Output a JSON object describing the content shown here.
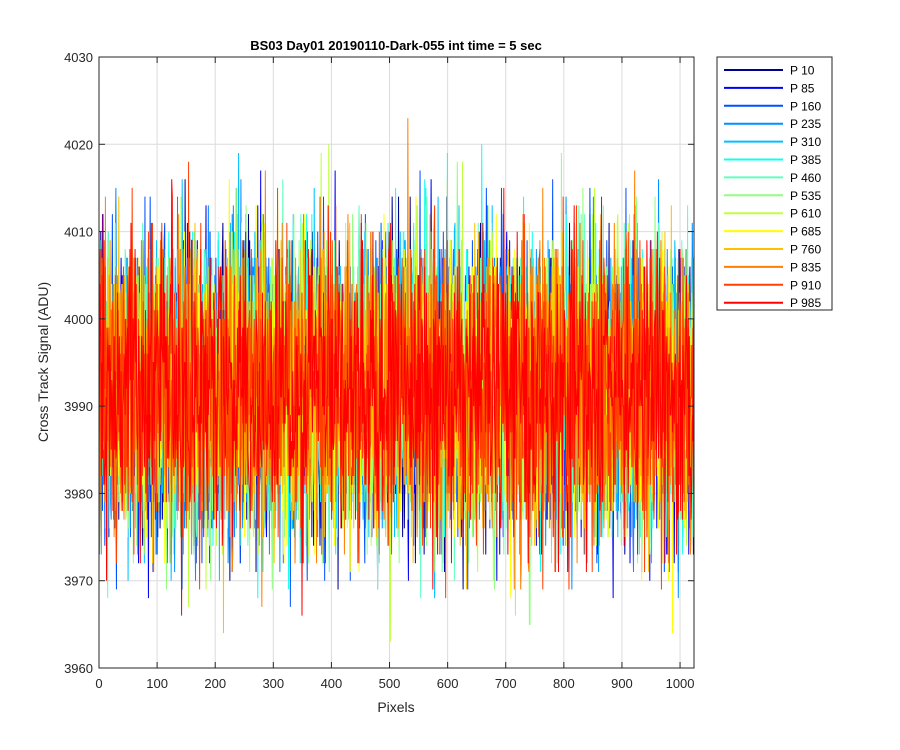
{
  "chart_data": {
    "type": "line",
    "title": "BS03 Day01 20190110-Dark-055 int time = 5 sec",
    "xlabel": "Pixels",
    "ylabel": "Cross Track Signal (ADU)",
    "xlim": [
      0,
      1024
    ],
    "ylim": [
      3960,
      4030
    ],
    "xticks": [
      0,
      100,
      200,
      300,
      400,
      500,
      600,
      700,
      800,
      900,
      1000
    ],
    "yticks": [
      3960,
      3970,
      3980,
      3990,
      4000,
      4010,
      4020,
      4030
    ],
    "grid": true,
    "legend_position": "outside-top-right",
    "n_points": 1024,
    "series": [
      {
        "name": "P 10",
        "color": "#00008f",
        "mean": 3992,
        "std": 8.5
      },
      {
        "name": "P 85",
        "color": "#0000f5",
        "mean": 3992,
        "std": 8.5
      },
      {
        "name": "P 160",
        "color": "#0050ff",
        "mean": 3992,
        "std": 8.5
      },
      {
        "name": "P 235",
        "color": "#0090ff",
        "mean": 3992,
        "std": 8.5
      },
      {
        "name": "P 310",
        "color": "#00c0ff",
        "mean": 3992,
        "std": 8.5
      },
      {
        "name": "P 385",
        "color": "#10ffef",
        "mean": 3992,
        "std": 8.5
      },
      {
        "name": "P 460",
        "color": "#60ffc0",
        "mean": 3992,
        "std": 8.5
      },
      {
        "name": "P 535",
        "color": "#90ff80",
        "mean": 3992,
        "std": 8.5
      },
      {
        "name": "P 610",
        "color": "#c0ff40",
        "mean": 3992,
        "std": 8.5
      },
      {
        "name": "P 685",
        "color": "#ffff00",
        "mean": 3992,
        "std": 8.5
      },
      {
        "name": "P 760",
        "color": "#ffc000",
        "mean": 3992,
        "std": 8.5
      },
      {
        "name": "P 835",
        "color": "#ff8000",
        "mean": 3992,
        "std": 8.5
      },
      {
        "name": "P 910",
        "color": "#ff4000",
        "mean": 3992,
        "std": 8.5
      },
      {
        "name": "P 985",
        "color": "#ff0000",
        "mean": 3992,
        "std": 8.5
      }
    ]
  }
}
